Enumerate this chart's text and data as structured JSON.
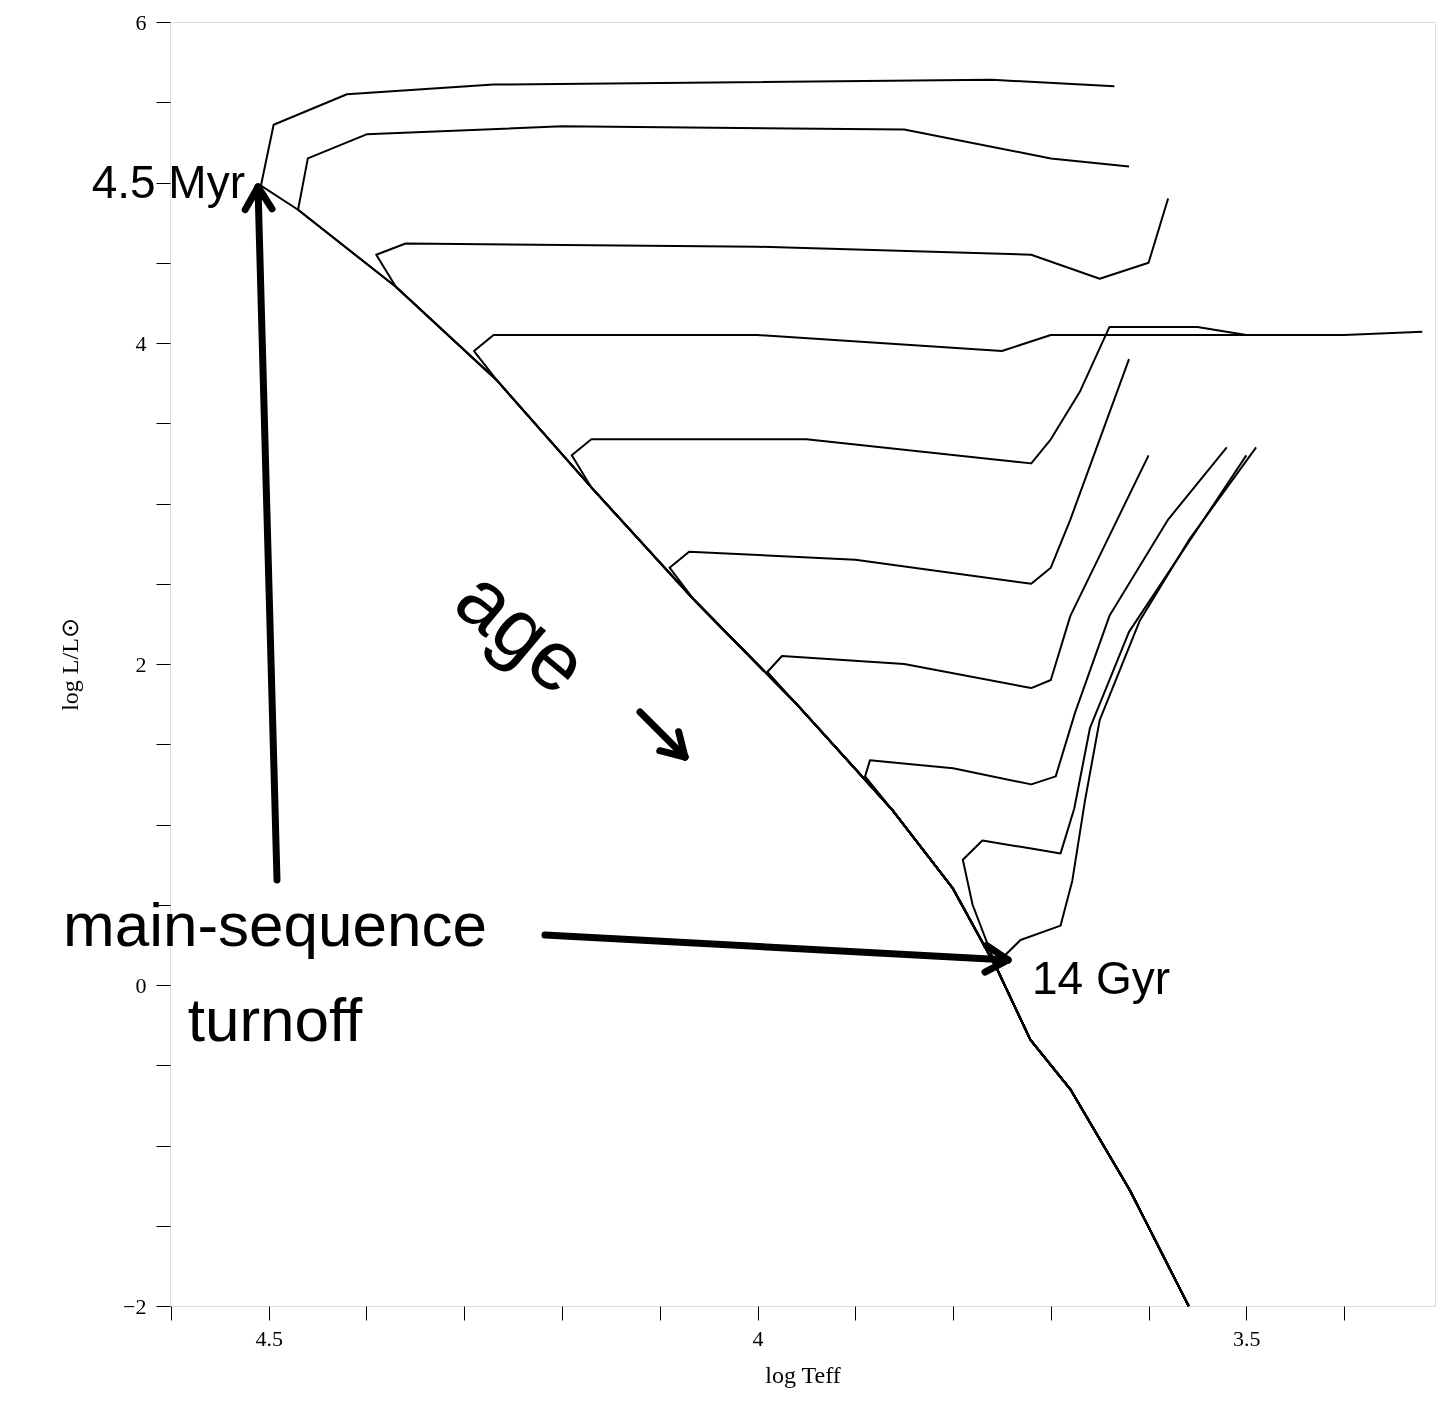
{
  "chart_data": {
    "type": "line",
    "xlabel": "log Teff",
    "ylabel": "log L/L⊙",
    "xlim": [
      4.601,
      3.307
    ],
    "ylim": [
      -2,
      6
    ],
    "xticks": [
      {
        "value": 4.6,
        "label": null
      },
      4.5,
      {
        "value": 4.4,
        "label": null
      },
      {
        "value": 4.3,
        "label": null
      },
      {
        "value": 4.2,
        "label": null
      },
      {
        "value": 4.1,
        "label": null
      },
      4,
      {
        "value": 3.9,
        "label": null
      },
      {
        "value": 3.8,
        "label": null
      },
      {
        "value": 3.7,
        "label": null
      },
      {
        "value": 3.6,
        "label": null
      },
      3.5,
      {
        "value": 3.4,
        "label": null
      }
    ],
    "yticks": [
      {
        "value": -2,
        "label": "−2"
      },
      {
        "value": -1.5,
        "label": null
      },
      {
        "value": -1,
        "label": null
      },
      {
        "value": -0.5,
        "label": null
      },
      0,
      {
        "value": 0.5,
        "label": null
      },
      {
        "value": 1,
        "label": null
      },
      {
        "value": 1.5,
        "label": null
      },
      2,
      {
        "value": 2.5,
        "label": null
      },
      {
        "value": 3,
        "label": null
      },
      {
        "value": 3.5,
        "label": null
      },
      4,
      {
        "value": 4.5,
        "label": null
      },
      {
        "value": 5,
        "label": null
      },
      {
        "value": 5.5,
        "label": null
      },
      6
    ],
    "grid": false,
    "legend": false,
    "marker": "none",
    "line_style": "solid",
    "annotations": [
      "4.5 Myr",
      "14 Gyr",
      "main-sequence turnoff",
      "age"
    ],
    "series": [
      {
        "color": "#000000",
        "x": [
          3.559,
          3.619,
          3.68,
          3.721,
          3.755,
          3.746,
          3.731,
          3.69,
          3.678,
          3.665,
          3.65,
          3.609,
          3.559,
          3.49
        ],
        "values": [
          -2,
          -1.28,
          -0.65,
          -0.34,
          0.1,
          0.19,
          0.28,
          0.37,
          0.65,
          1.15,
          1.65,
          2.27,
          2.77,
          3.35
        ]
      },
      {
        "color": "#000000",
        "x": [
          3.559,
          3.619,
          3.68,
          3.721,
          3.755,
          3.78,
          3.79,
          3.77,
          3.72,
          3.69,
          3.676,
          3.66,
          3.62,
          3.56,
          3.5
        ],
        "values": [
          -2,
          -1.28,
          -0.65,
          -0.34,
          0.1,
          0.5,
          0.78,
          0.9,
          0.85,
          0.82,
          1.1,
          1.6,
          2.2,
          2.75,
          3.3
        ]
      },
      {
        "color": "#000000",
        "x": [
          3.559,
          3.619,
          3.68,
          3.721,
          3.755,
          3.8,
          3.862,
          3.89,
          3.885,
          3.8,
          3.72,
          3.695,
          3.675,
          3.64,
          3.58,
          3.52
        ],
        "values": [
          -2,
          -1.28,
          -0.65,
          -0.34,
          0.1,
          0.6,
          1.09,
          1.3,
          1.4,
          1.35,
          1.25,
          1.3,
          1.7,
          2.3,
          2.9,
          3.35
        ]
      },
      {
        "color": "#000000",
        "x": [
          3.559,
          3.619,
          3.68,
          3.721,
          3.755,
          3.8,
          3.862,
          3.96,
          3.99,
          3.975,
          3.85,
          3.72,
          3.7,
          3.68,
          3.64,
          3.6
        ],
        "values": [
          -2,
          -1.28,
          -0.65,
          -0.34,
          0.1,
          0.6,
          1.09,
          1.75,
          1.95,
          2.05,
          2.0,
          1.85,
          1.9,
          2.3,
          2.8,
          3.3
        ]
      },
      {
        "color": "#000000",
        "x": [
          3.559,
          3.619,
          3.68,
          3.721,
          3.755,
          3.8,
          3.862,
          3.96,
          4.065,
          4.09,
          4.07,
          3.9,
          3.72,
          3.7,
          3.68,
          3.65,
          3.62
        ],
        "values": [
          -2,
          -1.28,
          -0.65,
          -0.34,
          0.1,
          0.6,
          1.09,
          1.75,
          2.4,
          2.6,
          2.7,
          2.65,
          2.5,
          2.6,
          2.9,
          3.4,
          3.9
        ]
      },
      {
        "color": "#000000",
        "x": [
          3.559,
          3.619,
          3.68,
          3.721,
          3.755,
          3.8,
          3.862,
          3.96,
          4.065,
          4.17,
          4.19,
          4.17,
          3.95,
          3.72,
          3.7,
          3.67,
          3.64,
          3.55,
          3.5
        ],
        "values": [
          -2,
          -1.28,
          -0.65,
          -0.34,
          0.1,
          0.6,
          1.09,
          1.75,
          2.4,
          3.1,
          3.3,
          3.4,
          3.4,
          3.25,
          3.4,
          3.7,
          4.1,
          4.1,
          4.05
        ]
      },
      {
        "color": "#000000",
        "x": [
          3.559,
          3.619,
          3.68,
          3.721,
          3.755,
          3.8,
          3.862,
          3.96,
          4.065,
          4.17,
          4.267,
          4.29,
          4.27,
          4.0,
          3.75,
          3.7,
          3.4,
          3.32
        ],
        "values": [
          -2,
          -1.28,
          -0.65,
          -0.34,
          0.1,
          0.6,
          1.09,
          1.75,
          2.4,
          3.1,
          3.77,
          3.95,
          4.05,
          4.05,
          3.95,
          4.05,
          4.05,
          4.07
        ]
      },
      {
        "color": "#000000",
        "x": [
          3.559,
          3.619,
          3.68,
          3.721,
          3.755,
          3.8,
          3.862,
          3.96,
          4.065,
          4.17,
          4.267,
          4.37,
          4.39,
          4.36,
          4.0,
          3.72,
          3.65,
          3.6,
          3.58
        ],
        "values": [
          -2,
          -1.28,
          -0.65,
          -0.34,
          0.1,
          0.6,
          1.09,
          1.75,
          2.4,
          3.1,
          3.77,
          4.35,
          4.55,
          4.62,
          4.6,
          4.55,
          4.4,
          4.5,
          4.9
        ]
      },
      {
        "color": "#000000",
        "x": [
          3.559,
          3.619,
          3.68,
          3.721,
          3.755,
          3.8,
          3.862,
          3.96,
          4.065,
          4.17,
          4.267,
          4.37,
          4.47,
          4.46,
          4.4,
          4.2,
          3.85,
          3.7,
          3.62
        ],
        "values": [
          -2,
          -1.28,
          -0.65,
          -0.34,
          0.1,
          0.6,
          1.09,
          1.75,
          2.4,
          3.1,
          3.77,
          4.35,
          4.83,
          5.15,
          5.3,
          5.35,
          5.33,
          5.15,
          5.1
        ]
      },
      {
        "color": "#000000",
        "x": [
          3.559,
          3.619,
          3.68,
          3.721,
          3.755,
          3.8,
          3.862,
          3.96,
          4.065,
          4.17,
          4.267,
          4.37,
          4.47,
          4.508,
          4.495,
          4.42,
          4.27,
          3.76,
          3.635
        ],
        "values": [
          -2,
          -1.28,
          -0.65,
          -0.34,
          0.1,
          0.6,
          1.09,
          1.75,
          2.4,
          3.1,
          3.77,
          4.35,
          4.83,
          4.98,
          5.36,
          5.55,
          5.61,
          5.64,
          5.6
        ]
      }
    ]
  }
}
